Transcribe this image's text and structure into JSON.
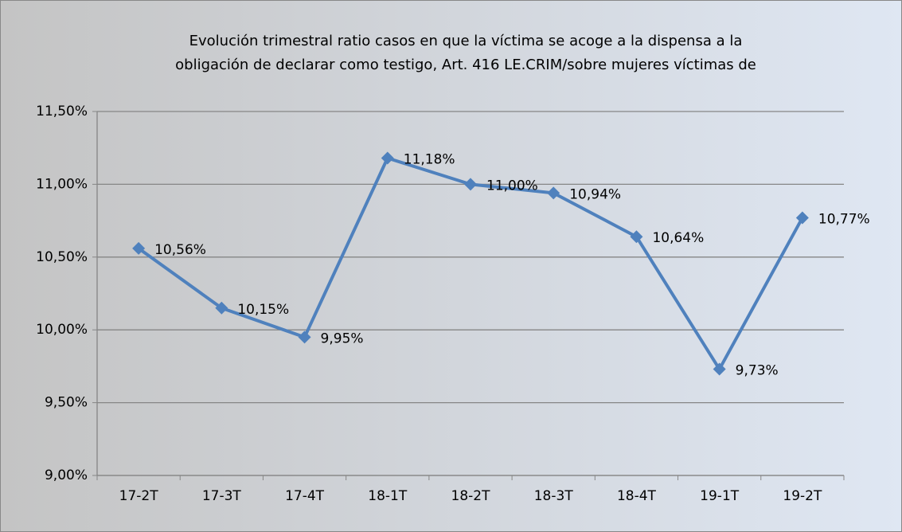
{
  "chart_data": {
    "type": "line",
    "title": [
      "Evolución  trimestral ratio casos en que la víctima se acoge a la dispensa  a la",
      "obligación de declarar como testigo, Art. 416 LE.CRIM/sobre mujeres víctimas de"
    ],
    "categories": [
      "17-2T",
      "17-3T",
      "17-4T",
      "18-1T",
      "18-2T",
      "18-3T",
      "18-4T",
      "19-1T",
      "19-2T"
    ],
    "values": [
      10.56,
      10.15,
      9.95,
      11.18,
      11.0,
      10.94,
      10.64,
      9.73,
      10.77
    ],
    "value_labels": [
      "10,56%",
      "10,15%",
      "9,95%",
      "11,18%",
      "11,00%",
      "10,94%",
      "10,64%",
      "9,73%",
      "10,77%"
    ],
    "color": "#4f81bd",
    "ylim": [
      9,
      11.5
    ],
    "yticks": [
      {
        "value": 9,
        "label": "9,00%"
      },
      {
        "value": 9.5,
        "label": "9,50%"
      },
      {
        "value": 10,
        "label": "10,00%"
      },
      {
        "value": 10.5,
        "label": "10,50%"
      },
      {
        "value": 11,
        "label": "11,00%"
      },
      {
        "value": 11.5,
        "label": "11,50%"
      }
    ],
    "grid": true
  }
}
